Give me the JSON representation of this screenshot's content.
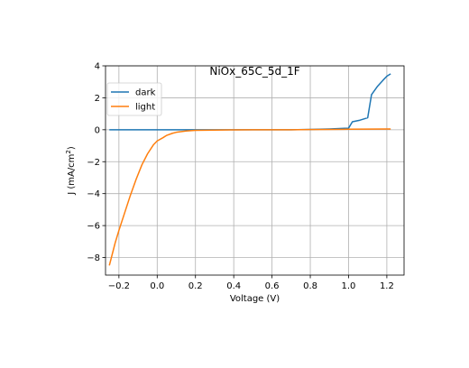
{
  "chart_data": {
    "type": "line",
    "title": "NiOx_65C_5d_1F",
    "xlabel": "Voltage (V)",
    "ylabel_main": "J (mA/cm",
    "ylabel_sup": "2",
    "ylabel_tail": ")",
    "xlim": [
      -0.27,
      1.29
    ],
    "ylim": [
      -9.1,
      4.0
    ],
    "xticks": [
      -0.2,
      0.0,
      0.2,
      0.4,
      0.6,
      0.8,
      1.0,
      1.2
    ],
    "xtick_labels": [
      "−0.2",
      "0.0",
      "0.2",
      "0.4",
      "0.6",
      "0.8",
      "1.0",
      "1.2"
    ],
    "yticks": [
      4,
      2,
      0,
      -2,
      -4,
      -6,
      -8
    ],
    "ytick_labels": [
      "4",
      "2",
      "0",
      "−2",
      "−4",
      "−6",
      "−8"
    ],
    "grid": true,
    "legend_position": "top-left",
    "series": [
      {
        "name": "dark",
        "color": "#1f77b4",
        "x": [
          -0.25,
          -0.2,
          -0.1,
          0.0,
          0.1,
          0.2,
          0.3,
          0.4,
          0.5,
          0.6,
          0.7,
          0.8,
          0.9,
          1.0,
          1.02,
          1.06,
          1.1,
          1.12,
          1.15,
          1.18,
          1.2,
          1.22
        ],
        "y": [
          0.0,
          0.0,
          0.0,
          0.0,
          0.0,
          0.0,
          0.0,
          0.0,
          0.0,
          0.0,
          0.0,
          0.02,
          0.05,
          0.1,
          0.5,
          0.6,
          0.75,
          2.2,
          2.7,
          3.1,
          3.35,
          3.5
        ]
      },
      {
        "name": "light",
        "color": "#ff7f0e",
        "x": [
          -0.25,
          -0.22,
          -0.2,
          -0.17,
          -0.14,
          -0.11,
          -0.08,
          -0.05,
          -0.02,
          0.0,
          0.03,
          0.05,
          0.08,
          0.1,
          0.15,
          0.2,
          0.3,
          0.4,
          0.5,
          0.6,
          0.7,
          0.8,
          0.9,
          1.0,
          1.1,
          1.2,
          1.22
        ],
        "y": [
          -8.5,
          -7.1,
          -6.3,
          -5.2,
          -4.1,
          -3.1,
          -2.2,
          -1.5,
          -0.95,
          -0.7,
          -0.5,
          -0.35,
          -0.22,
          -0.16,
          -0.08,
          -0.04,
          -0.02,
          -0.01,
          0.0,
          0.0,
          0.0,
          0.01,
          0.02,
          0.03,
          0.04,
          0.05,
          0.05
        ]
      }
    ]
  }
}
